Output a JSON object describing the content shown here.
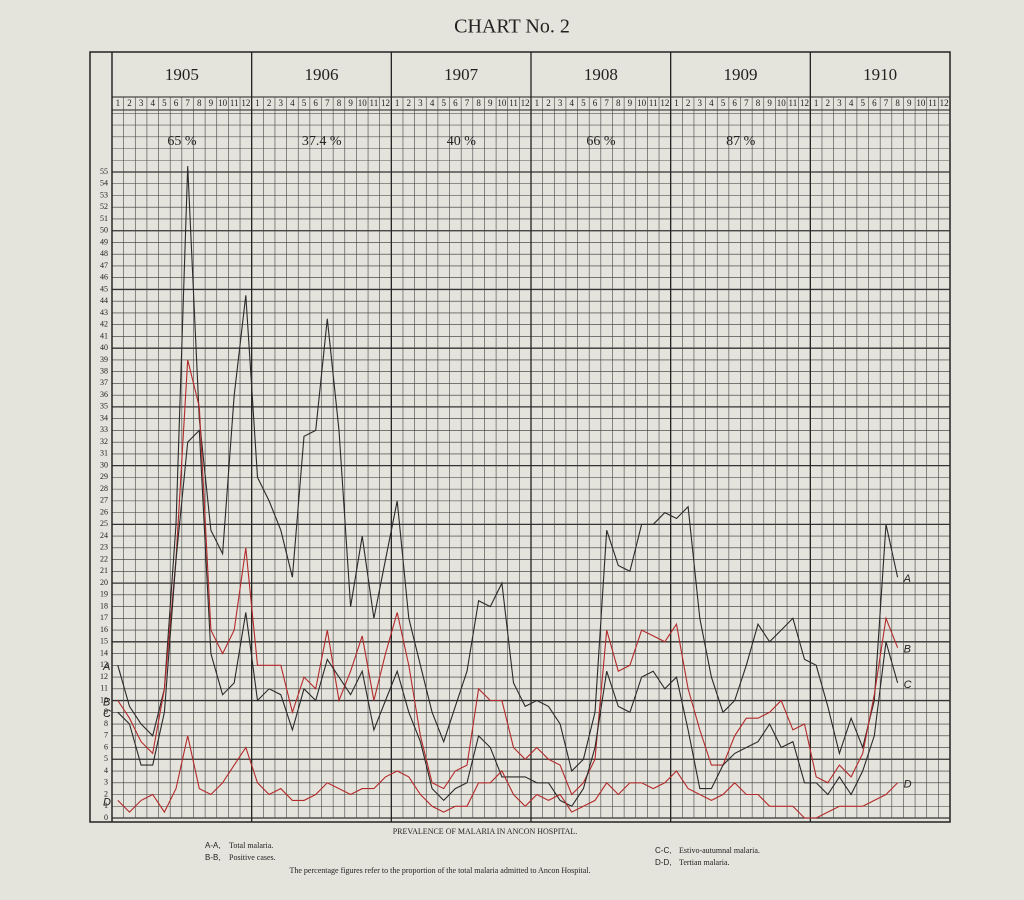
{
  "chart_data": {
    "type": "line",
    "title": "CHART No. 2",
    "subtitle": "PREVALENCE OF MALARIA IN ANCON HOSPITAL.",
    "note": "The percentage figures refer to the proportion of the total malaria admitted to Ancon Hospital.",
    "years": [
      "1905",
      "1906",
      "1907",
      "1908",
      "1909",
      "1910"
    ],
    "months": [
      "1",
      "2",
      "3",
      "4",
      "5",
      "6",
      "7",
      "8",
      "9",
      "10",
      "11",
      "12"
    ],
    "percentages": [
      "65 %",
      "37.4 %",
      "40 %",
      "66 %",
      "87 %"
    ],
    "ylim": [
      0,
      55
    ],
    "yticks": [
      0,
      1,
      2,
      3,
      4,
      5,
      6,
      7,
      8,
      9,
      10,
      11,
      12,
      13,
      14,
      15,
      16,
      17,
      18,
      19,
      20,
      21,
      22,
      23,
      24,
      25,
      26,
      27,
      28,
      29,
      30,
      31,
      32,
      33,
      34,
      35,
      36,
      37,
      38,
      39,
      40,
      41,
      42,
      43,
      44,
      45,
      46,
      47,
      48,
      49,
      50,
      51,
      52,
      53,
      54,
      55
    ],
    "grid": true,
    "series": [
      {
        "tag": "A",
        "key": "A-A,",
        "name": "Total malaria.",
        "color": "#2a2a2a",
        "values": [
          13,
          9.5,
          8,
          7,
          11,
          25,
          55.5,
          34,
          24.5,
          22.5,
          36,
          44.5,
          29,
          27,
          24.5,
          20.5,
          32.5,
          33,
          42.5,
          33,
          18,
          24,
          17,
          22,
          27,
          17,
          13,
          9,
          6.5,
          9.5,
          12.5,
          18.5,
          18,
          20,
          11.5,
          9.5,
          10,
          9.5,
          8,
          4,
          5,
          9,
          24.5,
          21.5,
          21,
          25,
          25,
          26,
          25.5,
          26.5,
          17,
          12,
          9,
          10,
          13,
          16.5,
          15,
          16,
          17,
          13.5,
          13,
          9.5,
          5.5,
          8.5,
          6,
          10,
          25,
          20.5
        ]
      },
      {
        "tag": "B",
        "key": "B-B,",
        "name": "Positive cases.",
        "color": "#b32a2a",
        "values": [
          10,
          8.5,
          6.5,
          5.5,
          11,
          22,
          39,
          35,
          16,
          14,
          16,
          23,
          13,
          13,
          13,
          9,
          12,
          11,
          16,
          10,
          12.5,
          15.5,
          10,
          14,
          17.5,
          13,
          7,
          3,
          2.5,
          4,
          4.5,
          11,
          10,
          10,
          6,
          5,
          6,
          5,
          4.5,
          2,
          3,
          5,
          16,
          12.5,
          13,
          16,
          15.5,
          15,
          16.5,
          11,
          7.5,
          4.5,
          4.5,
          7,
          8.5,
          8.5,
          9,
          10,
          7.5,
          8,
          3.5,
          3,
          4.5,
          3.5,
          5.5,
          10.5,
          17,
          14.5
        ]
      },
      {
        "tag": "C",
        "key": "C-C,",
        "name": "Estivo-autumnal malaria.",
        "color": "#2a2a2a",
        "values": [
          9,
          8,
          4.5,
          4.5,
          9,
          22,
          32,
          33,
          14,
          10.5,
          11.5,
          17.5,
          10,
          11,
          10.5,
          7.5,
          11,
          10,
          13.5,
          12,
          10.5,
          12.5,
          7.5,
          10,
          12.5,
          9,
          6.5,
          2.5,
          1.5,
          2.5,
          3,
          7,
          6,
          3.5,
          3.5,
          3.5,
          3,
          3,
          1.5,
          1,
          2.5,
          6,
          12.5,
          9.5,
          9,
          12,
          12.5,
          11,
          12,
          7.5,
          2.5,
          2.5,
          4.5,
          5.5,
          6,
          6.5,
          8,
          6,
          6.5,
          3,
          3,
          2,
          3.5,
          2,
          4,
          7,
          15,
          11.5
        ]
      },
      {
        "tag": "D",
        "key": "D-D,",
        "name": "Tertian malaria.",
        "color": "#b32a2a",
        "values": [
          1.5,
          0.5,
          1.5,
          2,
          0.5,
          2.5,
          7,
          2.5,
          2,
          3,
          4.5,
          6,
          3,
          2,
          2.5,
          1.5,
          1.5,
          2,
          3,
          2.5,
          2,
          2.5,
          2.5,
          3.5,
          4,
          3.5,
          2,
          1,
          0.5,
          1,
          1,
          3,
          3,
          4,
          2,
          1,
          2,
          1.5,
          2,
          0.5,
          1,
          1.5,
          3,
          2,
          3,
          3,
          2.5,
          3,
          4,
          2.5,
          2,
          1.5,
          2,
          3,
          2,
          2,
          1,
          1,
          1,
          0,
          0,
          0.5,
          1,
          1,
          1,
          1.5,
          2,
          3
        ]
      }
    ]
  }
}
